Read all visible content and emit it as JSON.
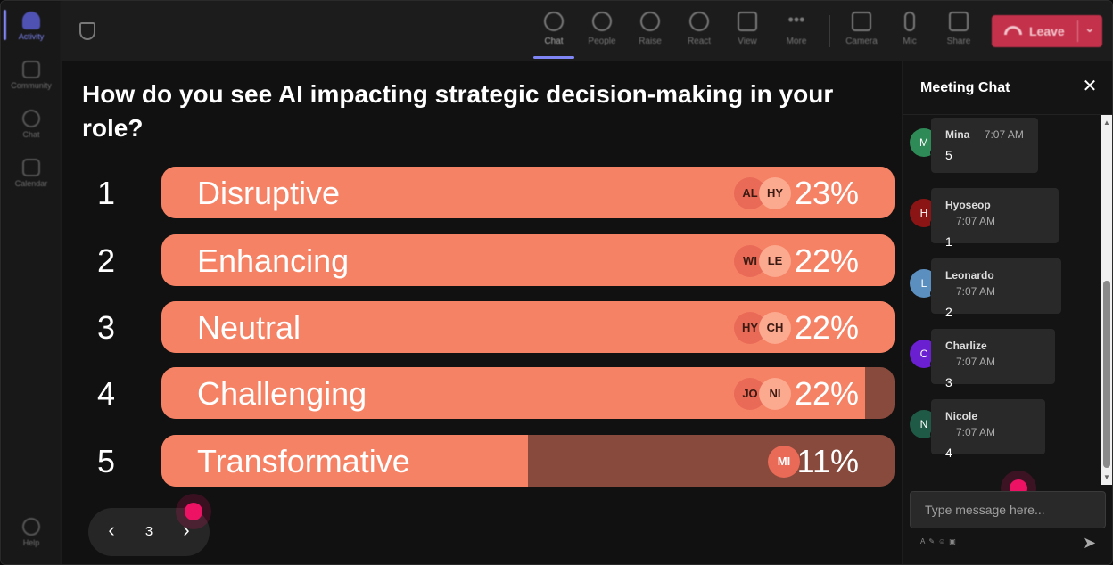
{
  "rail": {
    "items": [
      {
        "label": "Activity"
      },
      {
        "label": "Community"
      },
      {
        "label": "Chat"
      },
      {
        "label": "Calendar"
      }
    ],
    "help": "Help"
  },
  "toolbar": {
    "chat": "Chat",
    "people": "People",
    "raise": "Raise",
    "react": "React",
    "view": "View",
    "more": "More",
    "camera": "Camera",
    "mic": "Mic",
    "share": "Share",
    "leave": "Leave"
  },
  "poll": {
    "question": "How do you see AI impacting strategic decision-making in your role?",
    "options": [
      {
        "num": "1",
        "label": "Disruptive",
        "pct": "23%",
        "fill": 1.0,
        "avatars": [
          "AL",
          "HY"
        ]
      },
      {
        "num": "2",
        "label": "Enhancing",
        "pct": "22%",
        "fill": 1.0,
        "avatars": [
          "WI",
          "LE"
        ]
      },
      {
        "num": "3",
        "label": "Neutral",
        "pct": "22%",
        "fill": 1.0,
        "avatars": [
          "HY",
          "CH"
        ]
      },
      {
        "num": "4",
        "label": "Challenging",
        "pct": "22%",
        "fill": 0.96,
        "avatars": [
          "JO",
          "NI"
        ]
      },
      {
        "num": "5",
        "label": "Transformative",
        "pct": "11%",
        "fill": 0.5,
        "avatars": [
          "MI"
        ]
      }
    ],
    "page": "3"
  },
  "chat": {
    "title": "Meeting Chat",
    "messages": [
      {
        "initial": "M",
        "name": "Mina",
        "time": "7:07 AM",
        "text": "5",
        "color": "#2e8b57"
      },
      {
        "initial": "H",
        "name": "Hyoseop",
        "time": "7:07 AM",
        "text": "1",
        "color": "#8b1414"
      },
      {
        "initial": "L",
        "name": "Leonardo",
        "time": "7:07 AM",
        "text": "2",
        "color": "#5b8fbf"
      },
      {
        "initial": "C",
        "name": "Charlize",
        "time": "7:07 AM",
        "text": "3",
        "color": "#6a1fd1"
      },
      {
        "initial": "N",
        "name": "Nicole",
        "time": "7:07 AM",
        "text": "4",
        "color": "#1e5a46"
      }
    ],
    "input_placeholder": "Type message here..."
  }
}
